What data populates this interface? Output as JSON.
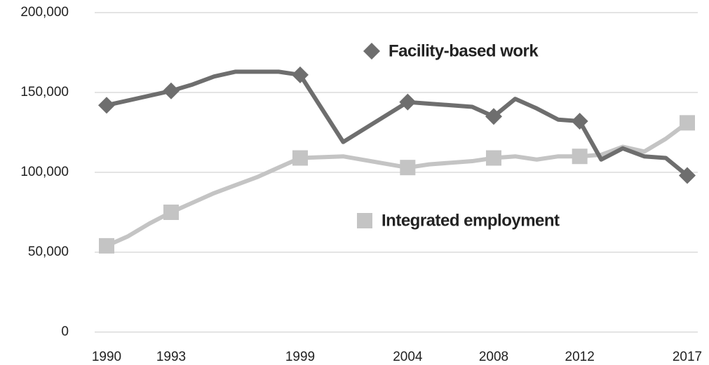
{
  "chart_data": {
    "type": "line",
    "x": [
      1990,
      1991,
      1992,
      1993,
      1994,
      1995,
      1996,
      1997,
      1998,
      1999,
      2001,
      2004,
      2005,
      2007,
      2008,
      2009,
      2010,
      2011,
      2012,
      2013,
      2014,
      2015,
      2016,
      2017
    ],
    "series": [
      {
        "name": "Facility-based work",
        "color": "#6e6e6e",
        "marker": "diamond",
        "values": [
          142000,
          145000,
          148000,
          151000,
          155000,
          160000,
          163000,
          163000,
          163000,
          161000,
          119000,
          144000,
          143000,
          141000,
          135000,
          146000,
          140000,
          133000,
          132000,
          108000,
          115000,
          110000,
          109000,
          98000
        ]
      },
      {
        "name": "Integrated employment",
        "color": "#c4c4c4",
        "marker": "square",
        "values": [
          54000,
          60000,
          68000,
          75000,
          81000,
          87000,
          92000,
          97000,
          103000,
          109000,
          110000,
          103000,
          105000,
          107000,
          109000,
          110000,
          108000,
          110000,
          110000,
          111000,
          116000,
          113000,
          121000,
          131000
        ]
      }
    ],
    "xlim": [
      1990,
      2017
    ],
    "xticks": [
      1990,
      1993,
      1999,
      2004,
      2008,
      2012,
      2017
    ],
    "ylim": [
      0,
      200000
    ],
    "yticks": [
      0,
      {
        "value": 50000,
        "label": "50,000"
      },
      {
        "value": 100000,
        "label": "100,000"
      },
      {
        "value": 150000,
        "label": "150,000"
      },
      {
        "value": 200000,
        "label": "200,000"
      }
    ],
    "grid": true
  }
}
